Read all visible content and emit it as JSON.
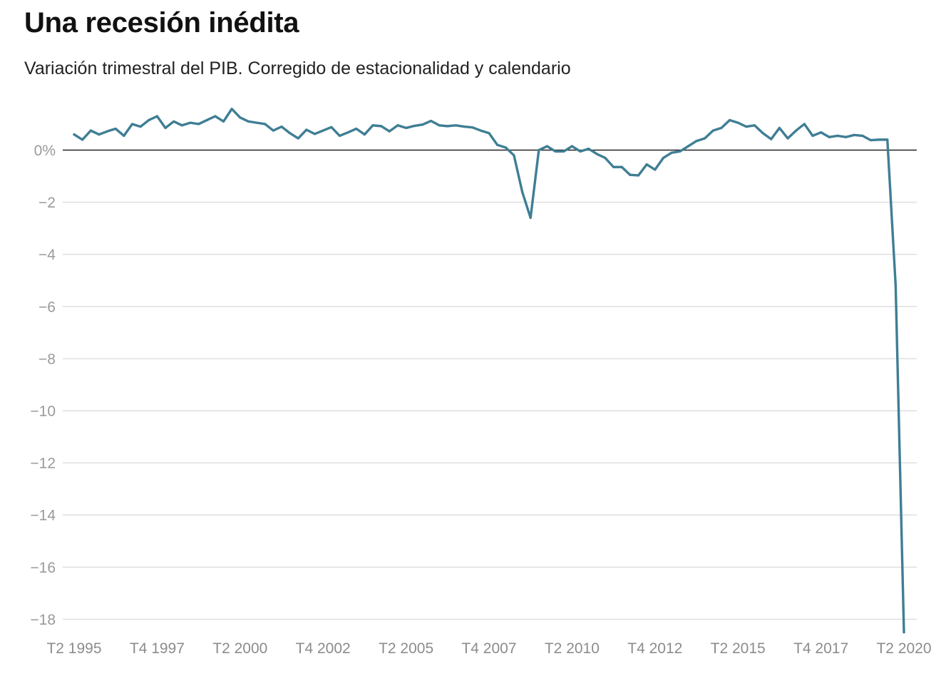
{
  "title": "Una recesión inédita",
  "subtitle": "Variación trimestral del PIB. Corregido de estacionalidad y calendario",
  "colors": {
    "line": "#3f7e94",
    "zero_line": "#222222",
    "grid": "#dddddd"
  },
  "chart_data": {
    "type": "line",
    "title": "Una recesión inédita",
    "subtitle": "Variación trimestral del PIB. Corregido de estacionalidad y calendario",
    "xlabel": "",
    "ylabel": "",
    "ylim": [
      -18.5,
      1.6
    ],
    "y_ticks": [
      {
        "value": 0,
        "label": "0%"
      },
      {
        "value": -2,
        "label": "−2"
      },
      {
        "value": -4,
        "label": "−4"
      },
      {
        "value": -6,
        "label": "−6"
      },
      {
        "value": -8,
        "label": "−8"
      },
      {
        "value": -10,
        "label": "−10"
      },
      {
        "value": -12,
        "label": "−12"
      },
      {
        "value": -14,
        "label": "−14"
      },
      {
        "value": -16,
        "label": "−16"
      },
      {
        "value": -18,
        "label": "−18"
      }
    ],
    "x_start": "T2 1995",
    "x_end": "T2 2020",
    "x_ticks": [
      {
        "label": "T2 1995",
        "at": "T2 1995"
      },
      {
        "label": "T4 1997",
        "at": "T4 1997"
      },
      {
        "label": "T2 2000",
        "at": "T2 2000"
      },
      {
        "label": "T4 2002",
        "at": "T4 2002"
      },
      {
        "label": "T2 2005",
        "at": "T2 2005"
      },
      {
        "label": "T4 2007",
        "at": "T4 2007"
      },
      {
        "label": "T2 2010",
        "at": "T2 2010"
      },
      {
        "label": "T4 2012",
        "at": "T4 2012"
      },
      {
        "label": "T2 2015",
        "at": "T2 2015"
      },
      {
        "label": "T4 2017",
        "at": "T4 2017"
      },
      {
        "label": "T2 2020",
        "at": "T2 2020"
      }
    ],
    "grid": true,
    "legend": "none",
    "series": [
      {
        "values": [
          0.6,
          0.4,
          0.75,
          0.6,
          0.72,
          0.82,
          0.55,
          1.0,
          0.9,
          1.15,
          1.3,
          0.85,
          1.1,
          0.95,
          1.05,
          1.0,
          1.15,
          1.3,
          1.1,
          1.58,
          1.25,
          1.1,
          1.05,
          1.0,
          0.75,
          0.9,
          0.65,
          0.45,
          0.78,
          0.62,
          0.75,
          0.88,
          0.55,
          0.68,
          0.82,
          0.6,
          0.95,
          0.92,
          0.72,
          0.95,
          0.85,
          0.93,
          0.98,
          1.12,
          0.95,
          0.92,
          0.95,
          0.9,
          0.87,
          0.75,
          0.65,
          0.2,
          0.1,
          -0.2,
          -1.6,
          -2.6,
          0.0,
          0.15,
          -0.05,
          -0.05,
          0.15,
          -0.05,
          0.05,
          -0.15,
          -0.3,
          -0.65,
          -0.65,
          -0.95,
          -0.97,
          -0.55,
          -0.75,
          -0.3,
          -0.1,
          -0.05,
          0.15,
          0.35,
          0.45,
          0.75,
          0.85,
          1.15,
          1.05,
          0.9,
          0.95,
          0.65,
          0.42,
          0.85,
          0.45,
          0.75,
          1.0,
          0.55,
          0.68,
          0.5,
          0.55,
          0.5,
          0.58,
          0.55,
          0.38,
          0.4,
          0.4,
          -5.2,
          -18.5
        ]
      }
    ]
  }
}
